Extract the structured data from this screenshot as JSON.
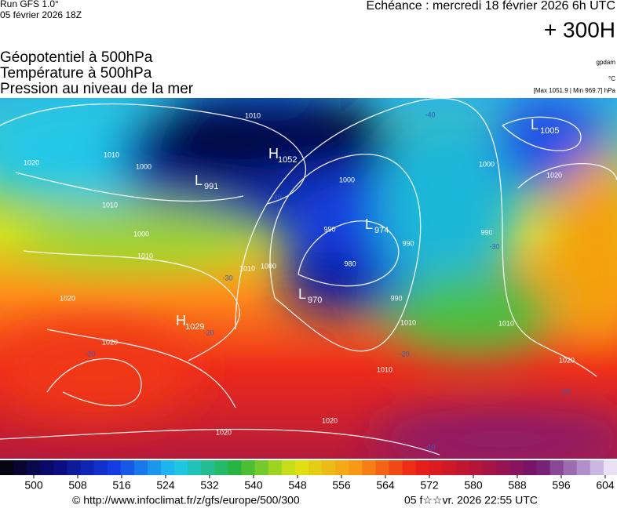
{
  "header": {
    "run": "Run GFS 1.0°",
    "run_date": "05 février 2026 18Z",
    "forecast": "Echéance : mercredi 18 février 2026 6h UTC",
    "lead": "+ 300H",
    "titles": [
      "Géopotentiel à 500hPa",
      "Température à 500hPa",
      "Pression au niveau de la mer"
    ],
    "units": [
      "gpdam",
      "°C",
      "[Max 1051.9 | Min 969.7] hPa"
    ]
  },
  "map": {
    "centers": [
      {
        "symbol": "H",
        "value": "1052"
      },
      {
        "symbol": "L",
        "value": "991"
      },
      {
        "symbol": "L",
        "value": "974"
      },
      {
        "symbol": "L",
        "value": "970"
      },
      {
        "symbol": "H",
        "value": "1029"
      },
      {
        "symbol": "L",
        "value": "1005"
      }
    ],
    "isobar_labels": [
      "1010",
      "1020",
      "1010",
      "1000",
      "1010",
      "1000",
      "990",
      "1000",
      "1010",
      "1020",
      "1020",
      "1010",
      "1000",
      "990",
      "990",
      "980",
      "990",
      "1000",
      "1010",
      "1020",
      "1020",
      "1010",
      "1020",
      "1020",
      "1010"
    ],
    "temperature_labels": [
      "-40",
      "-40",
      "-30",
      "-20",
      "-20",
      "-20",
      "-20",
      "-10",
      "-30"
    ]
  },
  "colorbar": {
    "ticks": [
      500,
      508,
      516,
      524,
      532,
      540,
      548,
      556,
      564,
      572,
      580,
      588,
      596,
      604
    ]
  },
  "footer": {
    "source": "© http://www.infoclimat.fr/z/gfs/europe/500/300",
    "timestamp": "05 f☆☆vr. 2026 22:55 UTC"
  }
}
